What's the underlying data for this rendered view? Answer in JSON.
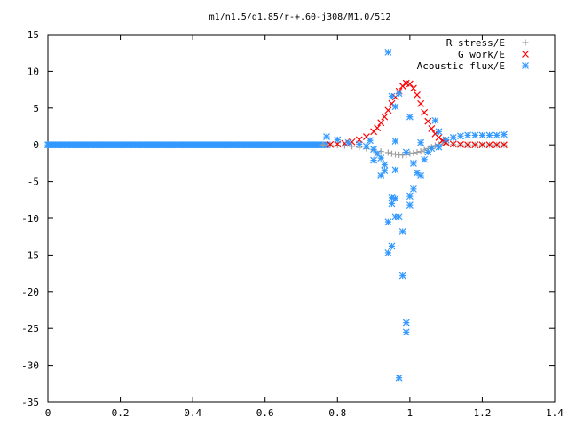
{
  "chart_data": {
    "type": "scatter",
    "title": "m1/n1.5/q1.85/r-+.60-j308/M1.0/512",
    "xlim": [
      0,
      1.4
    ],
    "ylim": [
      -35,
      15
    ],
    "xticks": [
      "0",
      "0.2",
      "0.4",
      "0.6",
      "0.8",
      "1",
      "1.2",
      "1.4"
    ],
    "yticks": [
      "15",
      "10",
      "5",
      "0",
      "-5",
      "-10",
      "-15",
      "-20",
      "-25",
      "-30",
      "-35"
    ],
    "grid": false,
    "legend_position": "top-right",
    "series": [
      {
        "name": "R stress/E",
        "marker": "plus",
        "color": "#a0a0a0",
        "points": [
          [
            0.76,
            0.0
          ],
          [
            0.78,
            0.0
          ],
          [
            0.8,
            -0.05
          ],
          [
            0.82,
            -0.1
          ],
          [
            0.84,
            -0.2
          ],
          [
            0.86,
            -0.35
          ],
          [
            0.88,
            -0.5
          ],
          [
            0.9,
            -0.7
          ],
          [
            0.92,
            -0.9
          ],
          [
            0.94,
            -1.05
          ],
          [
            0.95,
            -1.2
          ],
          [
            0.96,
            -1.3
          ],
          [
            0.97,
            -1.35
          ],
          [
            0.98,
            -1.4
          ],
          [
            0.99,
            -1.35
          ],
          [
            1.0,
            -1.2
          ],
          [
            1.01,
            -1.1
          ],
          [
            1.02,
            -1.0
          ],
          [
            1.03,
            -0.9
          ],
          [
            1.04,
            -0.7
          ],
          [
            1.05,
            -0.5
          ],
          [
            1.06,
            -0.3
          ],
          [
            1.07,
            -0.1
          ],
          [
            1.08,
            0.05
          ],
          [
            1.09,
            0.3
          ],
          [
            1.1,
            0.15
          ],
          [
            1.12,
            0.05
          ],
          [
            1.14,
            0.0
          ],
          [
            1.16,
            0.0
          ],
          [
            1.18,
            0.0
          ],
          [
            1.2,
            0.0
          ],
          [
            1.22,
            0.0
          ],
          [
            1.24,
            0.0
          ],
          [
            1.26,
            0.0
          ]
        ]
      },
      {
        "name": "G work/E",
        "marker": "cross",
        "color": "#ff0000",
        "points": [
          [
            0.78,
            0.05
          ],
          [
            0.8,
            0.1
          ],
          [
            0.82,
            0.2
          ],
          [
            0.84,
            0.4
          ],
          [
            0.86,
            0.7
          ],
          [
            0.88,
            1.1
          ],
          [
            0.9,
            1.8
          ],
          [
            0.91,
            2.3
          ],
          [
            0.92,
            3.0
          ],
          [
            0.93,
            3.8
          ],
          [
            0.94,
            4.7
          ],
          [
            0.95,
            5.6
          ],
          [
            0.96,
            6.5
          ],
          [
            0.97,
            7.3
          ],
          [
            0.98,
            8.0
          ],
          [
            0.99,
            8.4
          ],
          [
            1.0,
            8.3
          ],
          [
            1.01,
            7.7
          ],
          [
            1.02,
            6.8
          ],
          [
            1.03,
            5.6
          ],
          [
            1.04,
            4.4
          ],
          [
            1.05,
            3.2
          ],
          [
            1.06,
            2.2
          ],
          [
            1.07,
            1.5
          ],
          [
            1.08,
            1.0
          ],
          [
            1.09,
            0.6
          ],
          [
            1.1,
            0.3
          ],
          [
            1.12,
            0.1
          ],
          [
            1.14,
            0.05
          ],
          [
            1.16,
            0.0
          ],
          [
            1.18,
            0.0
          ],
          [
            1.2,
            0.0
          ],
          [
            1.22,
            0.0
          ],
          [
            1.24,
            0.0
          ],
          [
            1.26,
            0.0
          ]
        ]
      },
      {
        "name": "Acoustic flux/E",
        "marker": "star",
        "color": "#3399ff",
        "points": [
          [
            0.77,
            1.1
          ],
          [
            0.8,
            0.7
          ],
          [
            0.83,
            0.3
          ],
          [
            0.86,
            0.1
          ],
          [
            0.88,
            -0.2
          ],
          [
            0.9,
            -0.6
          ],
          [
            0.91,
            -1.2
          ],
          [
            0.92,
            -1.8
          ],
          [
            0.93,
            -2.7
          ],
          [
            0.93,
            -3.5
          ],
          [
            0.94,
            -14.7
          ],
          [
            0.94,
            -10.5
          ],
          [
            0.94,
            12.6
          ],
          [
            0.95,
            -7.2
          ],
          [
            0.95,
            -8.0
          ],
          [
            0.95,
            -13.8
          ],
          [
            0.95,
            6.6
          ],
          [
            0.96,
            -7.3
          ],
          [
            0.96,
            -9.8
          ],
          [
            0.96,
            5.2
          ],
          [
            0.97,
            -9.8
          ],
          [
            0.97,
            -31.7
          ],
          [
            0.97,
            7.0
          ],
          [
            0.98,
            -11.8
          ],
          [
            0.98,
            -17.8
          ],
          [
            0.99,
            -24.2
          ],
          [
            0.99,
            -25.5
          ],
          [
            1.0,
            -7.0
          ],
          [
            1.0,
            -8.2
          ],
          [
            1.0,
            3.8
          ],
          [
            1.01,
            -6.0
          ],
          [
            1.01,
            -2.5
          ],
          [
            1.02,
            -3.8
          ],
          [
            1.03,
            -4.2
          ],
          [
            1.04,
            -2.0
          ],
          [
            1.05,
            -1.0
          ],
          [
            1.06,
            -0.5
          ],
          [
            1.07,
            3.3
          ],
          [
            1.08,
            1.8
          ],
          [
            1.08,
            -0.3
          ],
          [
            1.1,
            0.7
          ],
          [
            1.12,
            1.0
          ],
          [
            1.14,
            1.2
          ],
          [
            1.16,
            1.3
          ],
          [
            1.18,
            1.3
          ],
          [
            1.2,
            1.3
          ],
          [
            1.22,
            1.3
          ],
          [
            1.24,
            1.3
          ],
          [
            1.26,
            1.4
          ],
          [
            0.96,
            -3.4
          ],
          [
            0.92,
            -4.2
          ],
          [
            0.99,
            -1.0
          ],
          [
            1.03,
            0.3
          ],
          [
            0.9,
            -2.1
          ],
          [
            0.89,
            0.6
          ],
          [
            0.96,
            0.5
          ]
        ]
      }
    ]
  }
}
